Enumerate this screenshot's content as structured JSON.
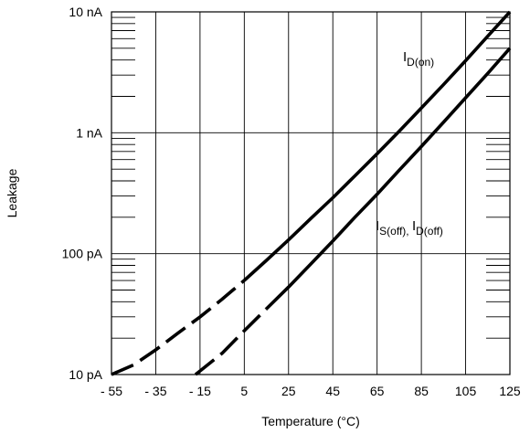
{
  "chart_data": {
    "type": "line",
    "xlabel": "Temperature (°C)",
    "ylabel": "Leakage",
    "x_ticks": [
      -55,
      -35,
      -15,
      5,
      25,
      45,
      65,
      85,
      105,
      125
    ],
    "x_tick_labels": [
      "- 55",
      "- 35",
      "- 15",
      "5",
      "25",
      "45",
      "65",
      "85",
      "105",
      "125"
    ],
    "y_scale": "log",
    "y_unit": "A",
    "y_ticks": [
      1e-11,
      1e-10,
      1e-09,
      1e-08
    ],
    "y_tick_labels": [
      "10 pA",
      "100 pA",
      "1 nA",
      "10 nA"
    ],
    "xlim": [
      -55,
      125
    ],
    "ylim": [
      1e-11,
      1e-08
    ],
    "grid": true,
    "series": [
      {
        "name": "I_D(on)",
        "dashed_until_x": 5,
        "points": [
          {
            "x": -55,
            "y": 1e-11
          },
          {
            "x": -45,
            "y": 1.2e-11
          },
          {
            "x": -35,
            "y": 1.6e-11
          },
          {
            "x": -25,
            "y": 2.2e-11
          },
          {
            "x": -15,
            "y": 3e-11
          },
          {
            "x": -5,
            "y": 4.2e-11
          },
          {
            "x": 5,
            "y": 6e-11
          },
          {
            "x": 15,
            "y": 8.8e-11
          },
          {
            "x": 25,
            "y": 1.3e-10
          },
          {
            "x": 35,
            "y": 1.95e-10
          },
          {
            "x": 45,
            "y": 2.9e-10
          },
          {
            "x": 55,
            "y": 4.4e-10
          },
          {
            "x": 65,
            "y": 6.7e-10
          },
          {
            "x": 75,
            "y": 1.03e-09
          },
          {
            "x": 85,
            "y": 1.6e-09
          },
          {
            "x": 95,
            "y": 2.5e-09
          },
          {
            "x": 105,
            "y": 3.95e-09
          },
          {
            "x": 115,
            "y": 6.3e-09
          },
          {
            "x": 125,
            "y": 1e-08
          }
        ]
      },
      {
        "name": "I_S(off), I_D(off)",
        "dashed_until_x": 15,
        "points": [
          {
            "x": -17,
            "y": 1e-11
          },
          {
            "x": -5,
            "y": 1.5e-11
          },
          {
            "x": 5,
            "y": 2.3e-11
          },
          {
            "x": 15,
            "y": 3.5e-11
          },
          {
            "x": 25,
            "y": 5.3e-11
          },
          {
            "x": 35,
            "y": 8.2e-11
          },
          {
            "x": 45,
            "y": 1.27e-10
          },
          {
            "x": 55,
            "y": 2e-10
          },
          {
            "x": 65,
            "y": 3.1e-10
          },
          {
            "x": 75,
            "y": 4.9e-10
          },
          {
            "x": 85,
            "y": 7.7e-10
          },
          {
            "x": 95,
            "y": 1.22e-09
          },
          {
            "x": 105,
            "y": 1.95e-09
          },
          {
            "x": 115,
            "y": 3.1e-09
          },
          {
            "x": 125,
            "y": 5e-09
          }
        ]
      }
    ],
    "annotations": [
      {
        "main": "I",
        "sub": "D(on)"
      },
      {
        "main": "I",
        "sub": "S(off)",
        "sep": ", ",
        "main2": "I",
        "sub2": "D(off)"
      }
    ]
  }
}
